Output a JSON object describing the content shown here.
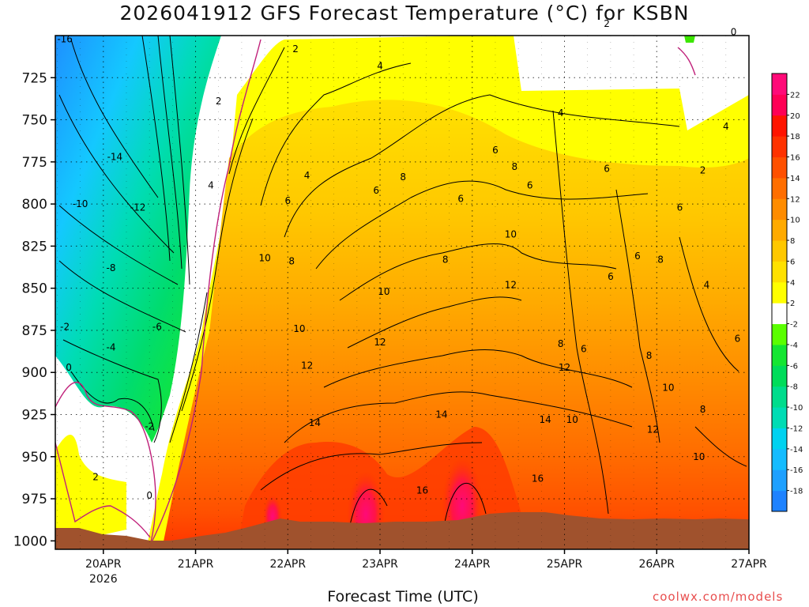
{
  "chart_data": {
    "type": "heatmap",
    "title": "2026041912 GFS Forecast Temperature (°C) for KSBN",
    "xlabel": "Forecast Time (UTC)",
    "ylabel": "Pressure (hPa)",
    "credit": "coolwx.com/models",
    "x_range_hours": [
      -12.5,
      168
    ],
    "x_ticks": [
      {
        "hour": 0,
        "label": "20APR",
        "sub": "2026"
      },
      {
        "hour": 24,
        "label": "21APR",
        "sub": ""
      },
      {
        "hour": 48,
        "label": "22APR",
        "sub": ""
      },
      {
        "hour": 72,
        "label": "23APR",
        "sub": ""
      },
      {
        "hour": 96,
        "label": "24APR",
        "sub": ""
      },
      {
        "hour": 120,
        "label": "25APR",
        "sub": ""
      },
      {
        "hour": 144,
        "label": "26APR",
        "sub": ""
      },
      {
        "hour": 168,
        "label": "27APR",
        "sub": ""
      }
    ],
    "y_range_hpa": [
      700,
      1005
    ],
    "y_ticks": [
      725,
      750,
      775,
      800,
      825,
      850,
      875,
      900,
      925,
      950,
      975,
      1000
    ],
    "colorbar": {
      "levels": [
        -18,
        -16,
        -14,
        -12,
        -10,
        -8,
        -6,
        -4,
        -2,
        2,
        4,
        6,
        8,
        10,
        12,
        14,
        16,
        18,
        20,
        22
      ],
      "colors": [
        "#1e82ff",
        "#1ea0ff",
        "#14bcff",
        "#00d2f0",
        "#00dcb4",
        "#00dc8c",
        "#00dc5a",
        "#14e632",
        "#5aff00",
        "#ffffff",
        "#ffff00",
        "#ffe100",
        "#ffc800",
        "#ffaa00",
        "#ff8c00",
        "#ff6e00",
        "#ff5000",
        "#ff3200",
        "#ff1400",
        "#ff0055",
        "#ff0a78"
      ]
    },
    "contour_labels": [
      {
        "v": "-16",
        "h": -10,
        "p": 702
      },
      {
        "v": "-14",
        "h": 3,
        "p": 772
      },
      {
        "v": "-10",
        "h": -6,
        "p": 800
      },
      {
        "v": "-12",
        "h": 9,
        "p": 802
      },
      {
        "v": "-8",
        "h": 2,
        "p": 838
      },
      {
        "v": "-2",
        "h": -10,
        "p": 873
      },
      {
        "v": "-4",
        "h": 2,
        "p": 885
      },
      {
        "v": "-6",
        "h": 14,
        "p": 873
      },
      {
        "v": "0",
        "h": -9,
        "p": 897
      },
      {
        "v": "-2",
        "h": 12,
        "p": 932
      },
      {
        "v": "2",
        "h": -2,
        "p": 962
      },
      {
        "v": "0",
        "h": 12,
        "p": 973
      },
      {
        "v": "2",
        "h": 30,
        "p": 739
      },
      {
        "v": "2",
        "h": 50,
        "p": 708
      },
      {
        "v": "4",
        "h": 28,
        "p": 789
      },
      {
        "v": "4",
        "h": 53,
        "p": 783
      },
      {
        "v": "4",
        "h": 72,
        "p": 718
      },
      {
        "v": "6",
        "h": 48,
        "p": 798
      },
      {
        "v": "6",
        "h": 71,
        "p": 792
      },
      {
        "v": "8",
        "h": 78,
        "p": 784
      },
      {
        "v": "8",
        "h": 49,
        "p": 834
      },
      {
        "v": "10",
        "h": 42,
        "p": 832
      },
      {
        "v": "10",
        "h": 51,
        "p": 874
      },
      {
        "v": "12",
        "h": 53,
        "p": 896
      },
      {
        "v": "14",
        "h": 55,
        "p": 930
      },
      {
        "v": "10",
        "h": 73,
        "p": 852
      },
      {
        "v": "12",
        "h": 72,
        "p": 882
      },
      {
        "v": "14",
        "h": 88,
        "p": 925
      },
      {
        "v": "16",
        "h": 83,
        "p": 970
      },
      {
        "v": "6",
        "h": 93,
        "p": 797
      },
      {
        "v": "8",
        "h": 89,
        "p": 833
      },
      {
        "v": "6",
        "h": 102,
        "p": 768
      },
      {
        "v": "8",
        "h": 107,
        "p": 778
      },
      {
        "v": "10",
        "h": 106,
        "p": 818
      },
      {
        "v": "12",
        "h": 106,
        "p": 848
      },
      {
        "v": "16",
        "h": 113,
        "p": 963
      },
      {
        "v": "14",
        "h": 115,
        "p": 928
      },
      {
        "v": "10",
        "h": 122,
        "p": 928
      },
      {
        "v": "12",
        "h": 120,
        "p": 897
      },
      {
        "v": "8",
        "h": 119,
        "p": 883
      },
      {
        "v": "6",
        "h": 125,
        "p": 886
      },
      {
        "v": "6",
        "h": 111,
        "p": 789
      },
      {
        "v": "4",
        "h": 119,
        "p": 746
      },
      {
        "v": "2",
        "h": 131,
        "p": 693
      },
      {
        "v": "0",
        "h": 164,
        "p": 698
      },
      {
        "v": "4",
        "h": 162,
        "p": 754
      },
      {
        "v": "2",
        "h": 156,
        "p": 780
      },
      {
        "v": "6",
        "h": 131,
        "p": 779
      },
      {
        "v": "6",
        "h": 150,
        "p": 802
      },
      {
        "v": "6",
        "h": 139,
        "p": 831
      },
      {
        "v": "8",
        "h": 145,
        "p": 833
      },
      {
        "v": "6",
        "h": 132,
        "p": 843
      },
      {
        "v": "4",
        "h": 157,
        "p": 848
      },
      {
        "v": "8",
        "h": 142,
        "p": 890
      },
      {
        "v": "10",
        "h": 147,
        "p": 909
      },
      {
        "v": "12",
        "h": 143,
        "p": 934
      },
      {
        "v": "8",
        "h": 156,
        "p": 922
      },
      {
        "v": "10",
        "h": 155,
        "p": 950
      },
      {
        "v": "6",
        "h": 165,
        "p": 880
      },
      {
        "v": "8",
        "h": 132,
        "p": 990
      }
    ]
  }
}
